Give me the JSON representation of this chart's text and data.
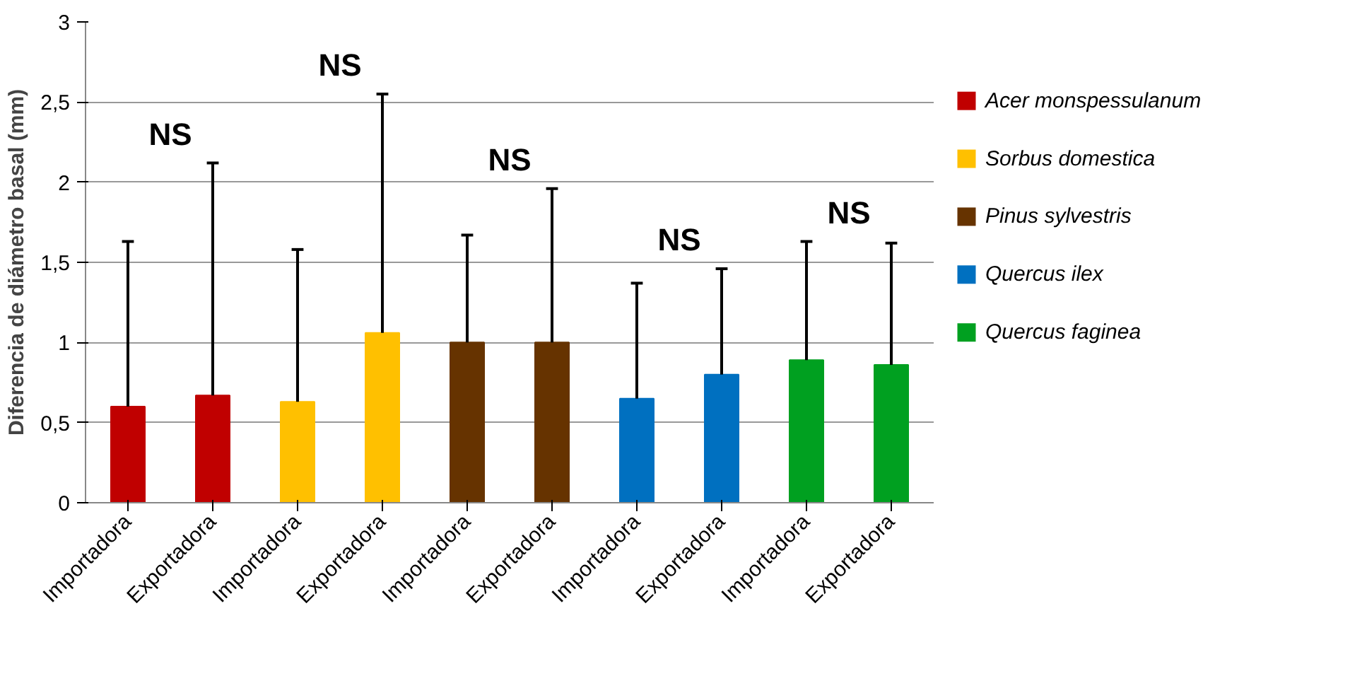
{
  "chart_data": {
    "type": "bar",
    "ylabel": "Diferencia de diámetro basal (mm)",
    "categories": [
      "Importadora",
      "Exportadora",
      "Importadora",
      "Exportadora",
      "Importadora",
      "Exportadora",
      "Importadora",
      "Exportadora",
      "Importadora",
      "Exportadora"
    ],
    "series": [
      {
        "name": "Acer monspessulanum",
        "color": "#c00000",
        "values": [
          0.6,
          0.67,
          null,
          null,
          null,
          null,
          null,
          null,
          null,
          null
        ],
        "errors": [
          [
            0.6,
            1.63
          ],
          [
            0.67,
            2.12
          ],
          null,
          null,
          null,
          null,
          null,
          null,
          null,
          null
        ]
      },
      {
        "name": "Sorbus domestica",
        "color": "#ffc000",
        "values": [
          null,
          null,
          0.63,
          1.06,
          null,
          null,
          null,
          null,
          null,
          null
        ],
        "errors": [
          null,
          null,
          [
            0.63,
            1.58
          ],
          [
            1.06,
            2.55
          ],
          null,
          null,
          null,
          null,
          null,
          null
        ]
      },
      {
        "name": "Pinus sylvestris",
        "color": "#663300",
        "values": [
          null,
          null,
          null,
          null,
          1.0,
          1.0,
          null,
          null,
          null,
          null
        ],
        "errors": [
          null,
          null,
          null,
          null,
          [
            1.0,
            1.67
          ],
          [
            1.0,
            1.96
          ],
          null,
          null,
          null,
          null
        ]
      },
      {
        "name": "Quercus ilex",
        "color": "#0070c0",
        "values": [
          null,
          null,
          null,
          null,
          null,
          null,
          0.65,
          0.8,
          null,
          null
        ],
        "errors": [
          null,
          null,
          null,
          null,
          null,
          null,
          [
            0.65,
            1.37
          ],
          [
            0.8,
            1.46
          ],
          null,
          null
        ]
      },
      {
        "name": "Quercus faginea",
        "color": "#00a020",
        "values": [
          null,
          null,
          null,
          null,
          null,
          null,
          null,
          null,
          0.89,
          0.86
        ],
        "errors": [
          null,
          null,
          null,
          null,
          null,
          null,
          null,
          null,
          [
            0.89,
            1.63
          ],
          [
            0.86,
            1.62
          ]
        ]
      }
    ],
    "ylim": [
      0,
      3
    ],
    "yticks": [
      0,
      {
        "value": 0.5,
        "label": "0,5"
      },
      1,
      {
        "value": 1.5,
        "label": "1,5"
      },
      2,
      {
        "value": 2.5,
        "label": "2,5"
      },
      3
    ],
    "grid": "y",
    "legend": "right",
    "annotations": [
      "NS",
      "NS",
      "NS",
      "NS",
      "NS"
    ]
  }
}
